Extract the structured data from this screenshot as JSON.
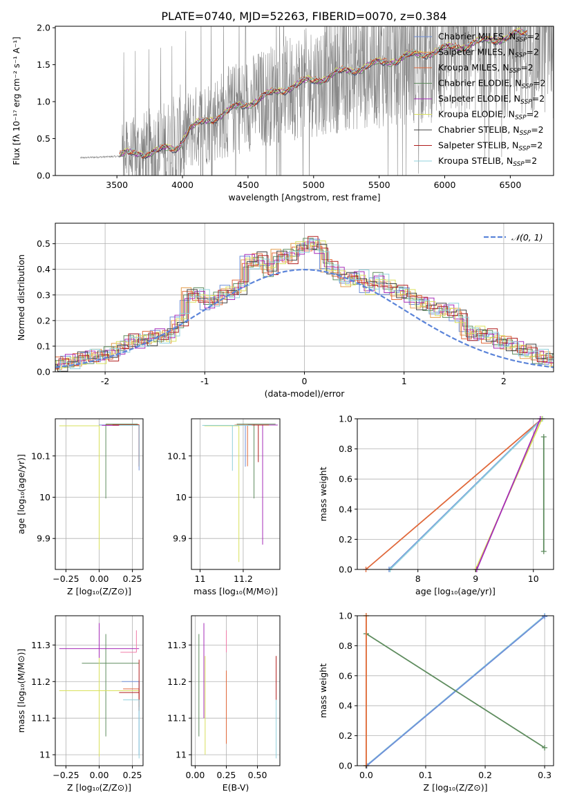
{
  "figure_title": "PLATE=0740, MJD=52263, FIBERID=0070, z=0.384",
  "colors": {
    "axis": "#000000",
    "grid": "#b0b0b0",
    "data_spectrum": "#808080",
    "normal_curve": "#5b84d9"
  },
  "models": [
    {
      "id": "chabrier-miles",
      "label": "Chabrier MILES, N",
      "sub": "SSP",
      "suffix": "=2",
      "color": "#6f8fd8"
    },
    {
      "id": "salpeter-miles",
      "label": "Salpeter MILES, N",
      "sub": "SSP",
      "suffix": "=2",
      "color": "#e39c4a"
    },
    {
      "id": "kroupa-miles",
      "label": "Kroupa MILES, N",
      "sub": "SSP",
      "suffix": "=2",
      "color": "#e0683a"
    },
    {
      "id": "chabrier-elodie",
      "label": "Chabrier ELODIE, N",
      "sub": "SSP",
      "suffix": "=2",
      "color": "#5e8c5e"
    },
    {
      "id": "salpeter-elodie",
      "label": "Salpeter ELODIE, N",
      "sub": "SSP",
      "suffix": "=2",
      "color": "#a52ab8"
    },
    {
      "id": "kroupa-elodie",
      "label": "Kroupa ELODIE, N",
      "sub": "SSP",
      "suffix": "=2",
      "color": "#d8e05a"
    },
    {
      "id": "chabrier-stelib",
      "label": "Chabrier STELIB, N",
      "sub": "SSP",
      "suffix": "=2",
      "color": "#404040"
    },
    {
      "id": "salpeter-stelib",
      "label": "Salpeter STELIB, N",
      "sub": "SSP",
      "suffix": "=2",
      "color": "#b01c1c"
    },
    {
      "id": "kroupa-stelib",
      "label": "Kroupa STELIB, N",
      "sub": "SSP",
      "suffix": "=2",
      "color": "#8fd0dc"
    }
  ],
  "chart_data": [
    {
      "id": "spectrum",
      "type": "line",
      "xlabel": "wavelength [Angstrom, rest frame]",
      "ylabel": "Flux [fλ 10⁻¹⁷ erg cm⁻² s⁻¹ A⁻¹]",
      "xlim": [
        3030,
        6830
      ],
      "ylim": [
        0,
        2.02
      ],
      "xticks": [
        3500,
        4000,
        4500,
        5000,
        5500,
        6000,
        6500
      ],
      "yticks": [
        0.0,
        0.5,
        1.0,
        1.5,
        2.0
      ],
      "grid": false,
      "legend": "top-right",
      "data_start": 3220,
      "model_start": 3520,
      "model_end": 6630,
      "model_trend": [
        [
          3220,
          0.24
        ],
        [
          3520,
          0.26
        ],
        [
          3800,
          0.32
        ],
        [
          3950,
          0.36
        ],
        [
          4050,
          0.62
        ],
        [
          4400,
          0.9
        ],
        [
          4800,
          1.18
        ],
        [
          5200,
          1.38
        ],
        [
          5600,
          1.55
        ],
        [
          6000,
          1.7
        ],
        [
          6630,
          1.92
        ]
      ]
    },
    {
      "id": "residual-distribution",
      "type": "line",
      "xlabel": "(data-model)/error",
      "ylabel": "Normed distribution",
      "xlim": [
        -2.5,
        2.5
      ],
      "ylim": [
        0,
        0.58
      ],
      "xticks": [
        -2,
        -1,
        0,
        1,
        2
      ],
      "yticks": [
        0.0,
        0.1,
        0.2,
        0.3,
        0.4,
        0.5
      ],
      "grid": true,
      "legend": "top-right",
      "legend_label": "𝒩(0, 1)",
      "bin_width": 0.1,
      "hist": [
        0.02,
        0.02,
        0.02,
        0.03,
        0.04,
        0.05,
        0.06,
        0.06,
        0.07,
        0.09,
        0.12,
        0.12,
        0.13,
        0.14,
        0.14,
        0.2,
        0.3,
        0.3,
        0.27,
        0.29,
        0.31,
        0.33,
        0.43,
        0.44,
        0.4,
        0.45,
        0.45,
        0.48,
        0.5,
        0.49,
        0.41,
        0.38,
        0.36,
        0.37,
        0.33,
        0.36,
        0.33,
        0.31,
        0.3,
        0.27,
        0.26,
        0.24,
        0.24,
        0.22,
        0.15,
        0.15,
        0.14,
        0.12,
        0.11,
        0.09,
        0.08,
        0.06,
        0.05,
        0.04,
        0.03,
        0.03
      ]
    },
    {
      "id": "age-vs-metallicity",
      "type": "line",
      "xlabel": "Z [log₁₀(Z/Z⊙)]",
      "ylabel": "age  [log₁₀(age/yr)]",
      "xlim": [
        -0.33,
        0.33
      ],
      "ylim": [
        9.825,
        10.19
      ],
      "xticks": [
        -0.25,
        0.0,
        0.25
      ],
      "xticklabels": [
        "−0.25",
        "0.00",
        "0.25"
      ],
      "yticks": [
        9.9,
        10.0,
        10.1
      ],
      "grid": true,
      "points": [
        {
          "x": 0.3,
          "y": 10.175,
          "xerr": [
            0.3,
            0.0
          ],
          "yerr": [
            0.11,
            0.0
          ],
          "color": "#6f8fd8"
        },
        {
          "x": 0.3,
          "y": 10.176,
          "xerr": [
            0.25,
            0.0
          ],
          "yerr": [
            0.09,
            0.0
          ],
          "color": "#e0683a"
        },
        {
          "x": 0.05,
          "y": 10.177,
          "xerr": [
            0.0,
            0.24
          ],
          "yerr": [
            0.18,
            0.0
          ],
          "color": "#5e8c5e"
        },
        {
          "x": 0.3,
          "y": 10.174,
          "xerr": [
            0.28,
            0.0
          ],
          "yerr": [
            0.1,
            0.0
          ],
          "color": "#a52ab8"
        },
        {
          "x": 0.0,
          "y": 10.173,
          "xerr": [
            0.3,
            0.0
          ],
          "yerr": [
            0.3,
            0.0
          ],
          "color": "#d8e05a"
        },
        {
          "x": 0.3,
          "y": 10.175,
          "xerr": [
            0.2,
            0.0
          ],
          "yerr": [
            0.1,
            0.0
          ],
          "color": "#b01c1c"
        },
        {
          "x": 0.3,
          "y": 10.174,
          "xerr": [
            0.15,
            0.0
          ],
          "yerr": [
            0.1,
            0.0
          ],
          "color": "#8fd0dc"
        }
      ]
    },
    {
      "id": "age-vs-mass",
      "type": "line",
      "xlabel": "mass [log₁₀(M/M⊙)]",
      "ylabel": "",
      "xlim": [
        10.96,
        11.37
      ],
      "ylim": [
        9.825,
        10.19
      ],
      "xticks": [
        11.0,
        11.2
      ],
      "yticks": [
        9.9,
        10.0,
        10.1
      ],
      "grid": true,
      "points": [
        {
          "x": 11.21,
          "y": 10.174,
          "xerr": [
            0.0,
            0.0
          ],
          "yerr": [
            0.1,
            0.0
          ],
          "color": "#6f8fd8"
        },
        {
          "x": 11.22,
          "y": 10.175,
          "xerr": [
            0.06,
            0.0
          ],
          "yerr": [
            0.1,
            0.0
          ],
          "color": "#e0683a"
        },
        {
          "x": 11.25,
          "y": 10.177,
          "xerr": [
            0.08,
            0.1
          ],
          "yerr": [
            0.18,
            0.0
          ],
          "color": "#5e8c5e"
        },
        {
          "x": 11.29,
          "y": 10.175,
          "xerr": [
            0.05,
            0.07
          ],
          "yerr": [
            0.29,
            0.0
          ],
          "color": "#a52ab8"
        },
        {
          "x": 11.18,
          "y": 10.173,
          "xerr": [
            0.16,
            0.0
          ],
          "yerr": [
            0.33,
            0.0
          ],
          "color": "#d8e05a"
        },
        {
          "x": 11.27,
          "y": 10.175,
          "xerr": [
            0.05,
            0.05
          ],
          "yerr": [
            0.09,
            0.0
          ],
          "color": "#b01c1c"
        },
        {
          "x": 11.15,
          "y": 10.174,
          "xerr": [
            0.14,
            0.09
          ],
          "yerr": [
            0.11,
            0.0
          ],
          "color": "#8fd0dc"
        }
      ]
    },
    {
      "id": "mass-weight-vs-age",
      "type": "line",
      "xlabel": "age  [log₁₀(age/yr)]",
      "ylabel": "mass weight",
      "xlim": [
        6.95,
        10.35
      ],
      "ylim": [
        0.0,
        1.0
      ],
      "xticks": [
        8,
        9,
        10
      ],
      "yticks": [
        0.0,
        0.2,
        0.4,
        0.6,
        0.8,
        1.0
      ],
      "grid": true,
      "series": [
        {
          "color": "#e0683a",
          "x": [
            7.1,
            10.15
          ],
          "y": [
            0.0,
            1.0
          ]
        },
        {
          "color": "#6f8fd8",
          "x": [
            7.5,
            10.15
          ],
          "y": [
            0.0,
            1.0
          ]
        },
        {
          "color": "#8fd0dc",
          "x": [
            7.52,
            10.16
          ],
          "y": [
            0.0,
            1.0
          ]
        },
        {
          "color": "#d8e05a",
          "x": [
            9.0,
            10.15
          ],
          "y": [
            0.0,
            1.0
          ]
        },
        {
          "color": "#a52ab8",
          "x": [
            9.02,
            10.12
          ],
          "y": [
            0.0,
            1.0
          ]
        },
        {
          "color": "#5e8c5e",
          "x": [
            10.18,
            10.18
          ],
          "y": [
            0.12,
            0.88
          ]
        }
      ]
    },
    {
      "id": "mass-vs-metallicity",
      "type": "line",
      "xlabel": "Z [log₁₀(Z/Z⊙)]",
      "ylabel": "mass [log₁₀(M/M⊙)]",
      "xlim": [
        -0.33,
        0.33
      ],
      "ylim": [
        10.97,
        11.38
      ],
      "xticks": [
        -0.25,
        0.0,
        0.25
      ],
      "xticklabels": [
        "−0.25",
        "0.00",
        "0.25"
      ],
      "yticks": [
        11.0,
        11.1,
        11.2,
        11.3
      ],
      "grid": true,
      "points": [
        {
          "x": 0.3,
          "y": 11.2,
          "xerr": [
            0.13,
            0.0
          ],
          "yerr": [
            0.2,
            0.0
          ],
          "color": "#6f8fd8"
        },
        {
          "x": 0.3,
          "y": 11.18,
          "xerr": [
            0.12,
            0.0
          ],
          "yerr": [
            0.05,
            0.0
          ],
          "color": "#e0683a"
        },
        {
          "x": 0.05,
          "y": 11.25,
          "xerr": [
            0.18,
            0.25
          ],
          "yerr": [
            0.2,
            0.08
          ],
          "color": "#5e8c5e"
        },
        {
          "x": 0.0,
          "y": 11.29,
          "xerr": [
            0.3,
            0.3
          ],
          "yerr": [
            0.1,
            0.07
          ],
          "color": "#a52ab8"
        },
        {
          "x": 0.0,
          "y": 11.175,
          "xerr": [
            0.3,
            0.3
          ],
          "yerr": [
            0.18,
            0.09
          ],
          "color": "#d8e05a"
        },
        {
          "x": 0.3,
          "y": 11.17,
          "xerr": [
            0.15,
            0.0
          ],
          "yerr": [
            0.05,
            0.09
          ],
          "color": "#b01c1c"
        },
        {
          "x": 0.3,
          "y": 11.15,
          "xerr": [
            0.12,
            0.0
          ],
          "yerr": [
            0.16,
            0.0
          ],
          "color": "#8fd0dc"
        },
        {
          "x": 0.28,
          "y": 11.28,
          "xerr": [
            0.12,
            0.0
          ],
          "yerr": [
            0.0,
            0.06
          ],
          "color": "#f07aa8"
        }
      ]
    },
    {
      "id": "mass-vs-extinction",
      "type": "line",
      "xlabel": "E(B-V)",
      "ylabel": "",
      "xlim": [
        -0.03,
        0.68
      ],
      "ylim": [
        10.97,
        11.38
      ],
      "xticks": [
        0.0,
        0.25,
        0.5
      ],
      "xticklabels": [
        "0.00",
        "0.25",
        "0.50"
      ],
      "yticks": [
        11.0,
        11.1,
        11.2,
        11.3
      ],
      "grid": true,
      "points": [
        {
          "x": 0.03,
          "y": 11.25,
          "xerr": [
            0.0,
            0.0
          ],
          "yerr": [
            0.2,
            0.08
          ],
          "color": "#5e8c5e"
        },
        {
          "x": 0.07,
          "y": 11.29,
          "xerr": [
            0.0,
            0.0
          ],
          "yerr": [
            0.19,
            0.07
          ],
          "color": "#a52ab8"
        },
        {
          "x": 0.08,
          "y": 11.18,
          "xerr": [
            0.0,
            0.0
          ],
          "yerr": [
            0.18,
            0.09
          ],
          "color": "#d8e05a"
        },
        {
          "x": 0.25,
          "y": 11.18,
          "xerr": [
            0.0,
            0.0
          ],
          "yerr": [
            0.15,
            0.05
          ],
          "color": "#e0683a"
        },
        {
          "x": 0.25,
          "y": 11.28,
          "xerr": [
            0.0,
            0.0
          ],
          "yerr": [
            0.0,
            0.06
          ],
          "color": "#f07aa8"
        },
        {
          "x": 0.65,
          "y": 11.2,
          "xerr": [
            0.0,
            0.0
          ],
          "yerr": [
            0.05,
            0.07
          ],
          "color": "#b01c1c"
        },
        {
          "x": 0.65,
          "y": 11.15,
          "xerr": [
            0.0,
            0.0
          ],
          "yerr": [
            0.16,
            0.0
          ],
          "color": "#8fd0dc"
        }
      ]
    },
    {
      "id": "mass-weight-vs-metallicity",
      "type": "line",
      "xlabel": "Z [log₁₀(Z/Z⊙)]",
      "ylabel": "mass weight",
      "xlim": [
        -0.015,
        0.315
      ],
      "ylim": [
        0.0,
        1.0
      ],
      "xticks": [
        0.0,
        0.1,
        0.2,
        0.3
      ],
      "xticklabels": [
        "0.0",
        "0.1",
        "0.2",
        "0.3"
      ],
      "yticks": [
        0.0,
        0.2,
        0.4,
        0.6,
        0.8,
        1.0
      ],
      "grid": true,
      "series": [
        {
          "color": "#8fd0dc",
          "x": [
            0.0,
            0.3
          ],
          "y": [
            0.0,
            1.0
          ]
        },
        {
          "color": "#6f8fd8",
          "x": [
            0.001,
            0.3
          ],
          "y": [
            0.0,
            0.995
          ]
        },
        {
          "color": "#5e8c5e",
          "x": [
            0.0,
            0.3
          ],
          "y": [
            0.88,
            0.12
          ]
        },
        {
          "color": "#d8e05a",
          "x": [
            0.0,
            0.0
          ],
          "y": [
            0.0,
            1.0
          ]
        },
        {
          "color": "#e0683a",
          "x": [
            0.0,
            0.0
          ],
          "y": [
            0.0,
            1.0
          ]
        }
      ]
    }
  ]
}
